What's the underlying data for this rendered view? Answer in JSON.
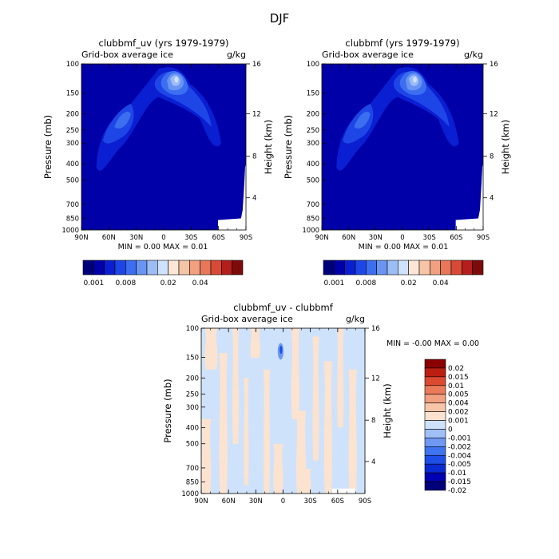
{
  "page_title": "DJF",
  "colors": {
    "levels": [
      "#00007a",
      "#0000a8",
      "#0a1ed2",
      "#1e46e6",
      "#3c6ef0",
      "#6a94f2",
      "#9cbcf6",
      "#cfe2fb",
      "#fde6d6",
      "#f6c4a6",
      "#f1a080",
      "#e8775a",
      "#d84a36",
      "#b41e1c",
      "#7e0a0a"
    ],
    "diff_levels": [
      "#00007a",
      "#0000b4",
      "#0a2ad2",
      "#1e4ee8",
      "#3e74f0",
      "#6e98f2",
      "#a0bff6",
      "#cfe2fb",
      "#fbe3d0",
      "#f7c6a8",
      "#f1a080",
      "#ea7a58",
      "#dc4a32",
      "#bc1e12",
      "#8a0000"
    ]
  },
  "chart_data": [
    {
      "id": "clubbmf_uv",
      "type": "heatmap",
      "title": "clubbmf_uv (yrs 1979-1979)",
      "subtitle_left": "Grid-box average ice",
      "subtitle_right": "g/kg",
      "ylabel": "Pressure (mb)",
      "y2label": "Height (km)",
      "xticks": [
        "90N",
        "60N",
        "30N",
        "0",
        "30S",
        "60S",
        "90S"
      ],
      "yticks": [
        100,
        150,
        200,
        250,
        300,
        400,
        500,
        700,
        850,
        1000
      ],
      "y2ticks": [
        16,
        12,
        8,
        4
      ],
      "minmax": "MIN =    0.00   MAX =    0.01",
      "colorbar_labels": [
        "0.001",
        "0.008",
        "0.02",
        "0.04"
      ]
    },
    {
      "id": "clubbmf",
      "type": "heatmap",
      "title": "clubbmf (yrs 1979-1979)",
      "subtitle_left": "Grid-box average ice",
      "subtitle_right": "g/kg",
      "ylabel": "Pressure (mb)",
      "y2label": "Height (km)",
      "xticks": [
        "90N",
        "60N",
        "30N",
        "0",
        "30S",
        "60S",
        "90S"
      ],
      "yticks": [
        100,
        150,
        200,
        250,
        300,
        400,
        500,
        700,
        850,
        1000
      ],
      "y2ticks": [
        16,
        12,
        8,
        4
      ],
      "minmax": "MIN =    0.00   MAX =    0.01",
      "colorbar_labels": [
        "0.001",
        "0.008",
        "0.02",
        "0.04"
      ]
    },
    {
      "id": "difference",
      "type": "heatmap",
      "title": "clubbmf_uv - clubbmf",
      "subtitle_left": "Grid-box average ice",
      "subtitle_right": "g/kg",
      "ylabel": "Pressure (mb)",
      "y2label": "Height (km)",
      "xticks": [
        "90N",
        "60N",
        "30N",
        "0",
        "30S",
        "60S",
        "90S"
      ],
      "yticks": [
        100,
        150,
        200,
        250,
        300,
        400,
        500,
        700,
        850,
        1000
      ],
      "y2ticks": [
        16,
        12,
        8,
        4
      ],
      "minmax": "MIN =   -0.00   MAX =    0.00",
      "colorbar_labels": [
        "0.02",
        "0.015",
        "0.01",
        "0.005",
        "0.004",
        "0.002",
        "0.001",
        "0",
        "-0.001",
        "-0.002",
        "-0.004",
        "-0.005",
        "-0.01",
        "-0.015",
        "-0.02"
      ]
    }
  ]
}
